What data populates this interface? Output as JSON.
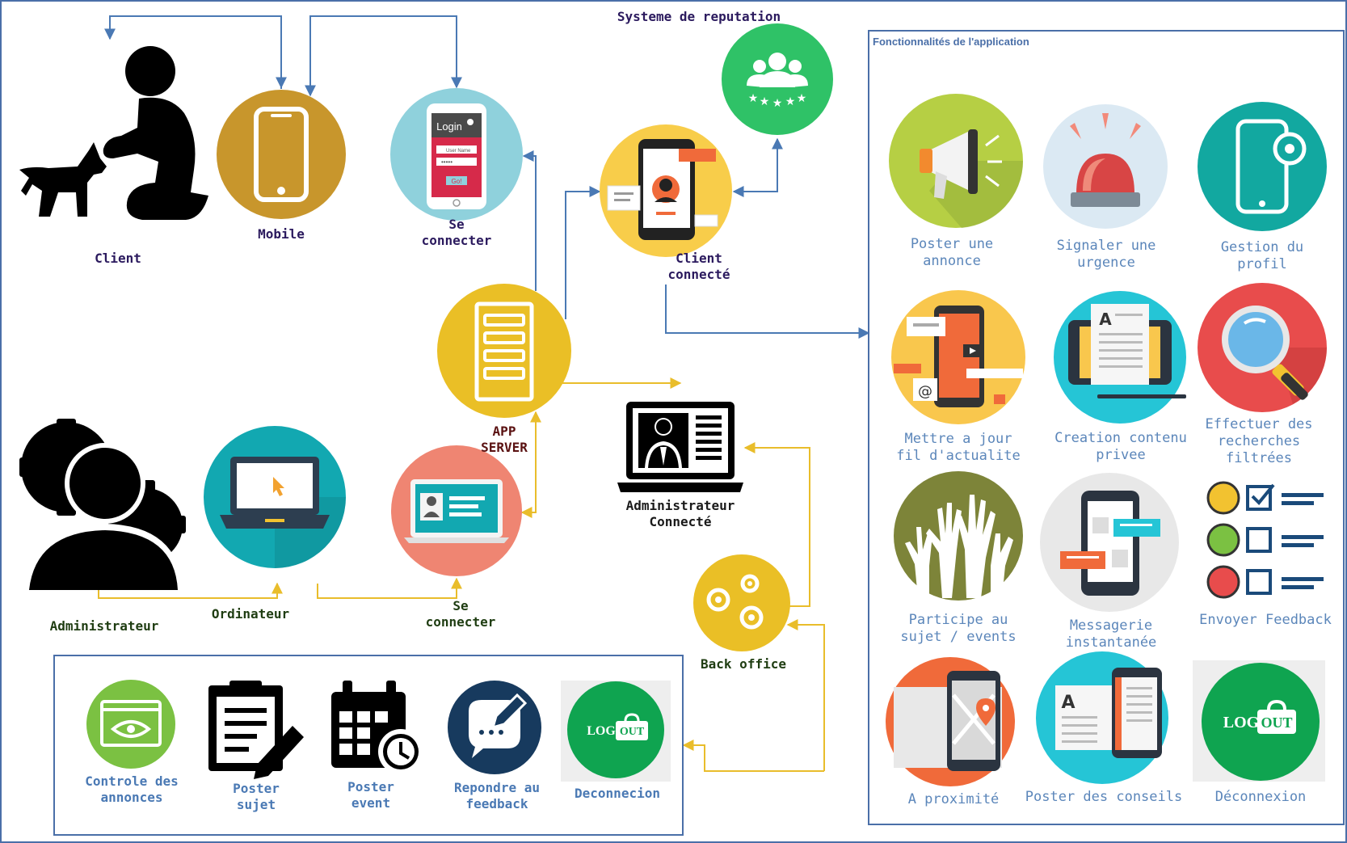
{
  "nodes": {
    "client": "Client",
    "mobile": "Mobile",
    "se_connecter_top": "Se\nconnecter",
    "systeme_reputation": "Systeme de reputation",
    "client_connecte": "Client\nconnecté",
    "app_server": "APP\nSERVER",
    "administrateur": "Administrateur",
    "ordinateur": "Ordinateur",
    "se_connecter_bottom": "Se\nconnecter",
    "admin_connecte": "Administrateur\nConnecté",
    "back_office": "Back office"
  },
  "features_panel": {
    "title": "Fonctionnalités  de  l'application",
    "items": [
      "Poster une\nannonce",
      "Signaler une\nurgence",
      "Gestion du\nprofil",
      "Mettre a jour\nfil d'actualite",
      "Creation contenu\nprivee",
      "Effectuer des\nrecherches\nfiltrées",
      "Participe au\nsujet / events",
      "Messagerie\ninstantanée",
      "Envoyer Feedback",
      "A proximité",
      "Poster des conseils",
      "Déconnexion"
    ]
  },
  "admin_panel": {
    "items": [
      "Controle des\nannonces",
      "Poster\nsujet",
      "Poster\nevent",
      "Repondre au\nfeedback",
      "Deconnecion"
    ]
  },
  "logout_logo": {
    "left": "LOG",
    "right": "OUT"
  },
  "login_screen": {
    "title": "Login",
    "user_field": "User Name",
    "button": "Go!"
  },
  "colors": {
    "blue_line": "#4a79b4",
    "yellow_line": "#e9bd2b",
    "mustard": "#c8962c",
    "light_blue": "#8fd1dc",
    "yellow": "#eabf26",
    "green": "#2fc267",
    "teal": "#1aa6ad",
    "salmon": "#ef8572",
    "logout_green": "#0fa450"
  }
}
